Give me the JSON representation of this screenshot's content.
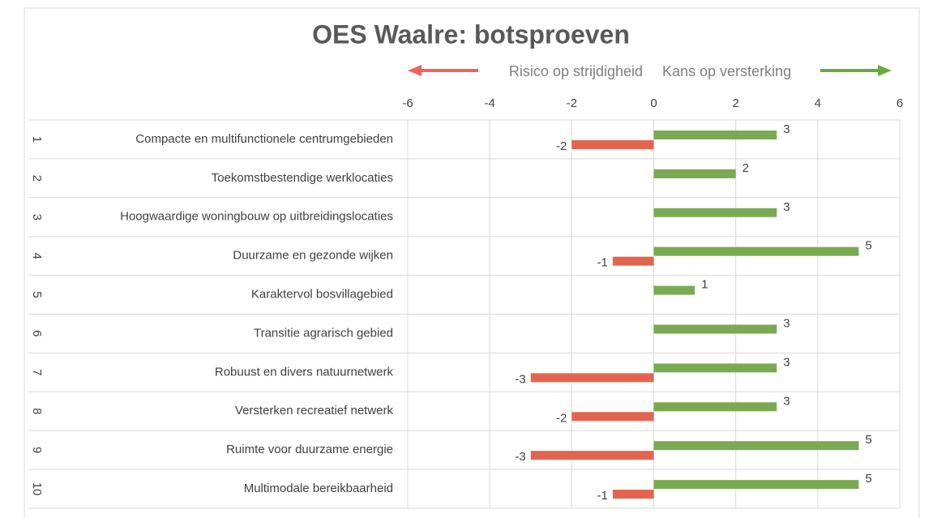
{
  "chart_data": {
    "type": "bar",
    "orientation": "horizontal",
    "title": "OES Waalre: botsproeven",
    "annotations": [
      "Risico op strijdigheid",
      "Kans op versterking"
    ],
    "category_numbers": [
      "1",
      "2",
      "3",
      "4",
      "5",
      "6",
      "7",
      "8",
      "9",
      "10"
    ],
    "categories": [
      "Compacte en multifunctionele centrumgebieden",
      "Toekomstbestendige werklocaties",
      "Hoogwaardige woningbouw op uitbreidingslocaties",
      "Duurzame en gezonde wijken",
      "Karaktervol bosvillagebied",
      "Transitie agrarisch gebied",
      "Robuust en divers natuurnetwerk",
      "Versterken recreatief netwerk",
      "Ruimte voor duurzame energie",
      "Multimodale bereikbaarheid"
    ],
    "series": [
      {
        "name": "Kans op versterking",
        "color": "#79aa52",
        "values": [
          3,
          2,
          3,
          5,
          1,
          3,
          3,
          3,
          5,
          5
        ]
      },
      {
        "name": "Risico op strijdigheid",
        "color": "#e4654f",
        "values": [
          -2,
          null,
          null,
          -1,
          null,
          null,
          -3,
          -2,
          -3,
          -1
        ]
      }
    ],
    "xlim": [
      -6,
      6
    ],
    "xticks": [
      -6,
      -4,
      -2,
      0,
      2,
      4,
      6
    ],
    "grid": true
  }
}
